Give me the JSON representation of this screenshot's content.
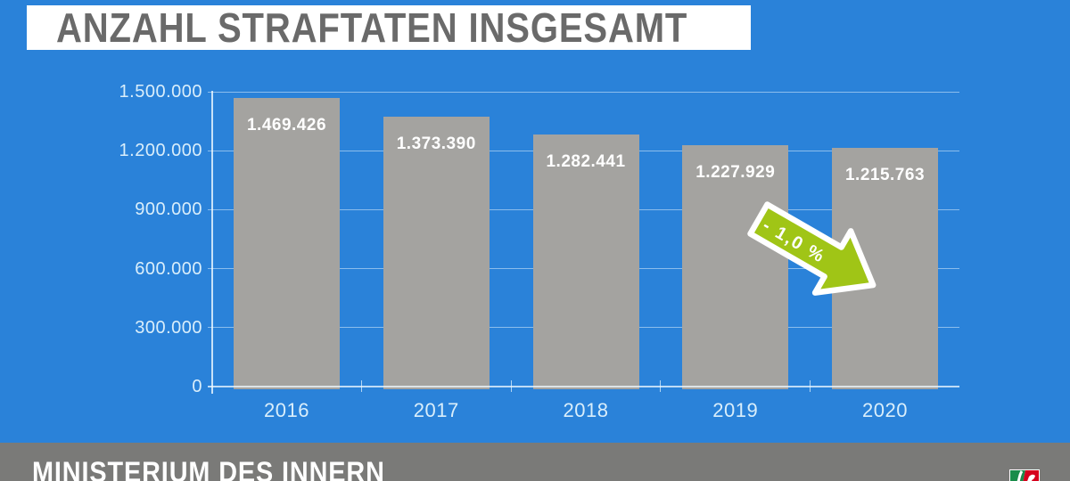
{
  "chart_data": {
    "type": "bar",
    "title": "ANZAHL STRAFTATEN INSGESAMT",
    "categories": [
      "2016",
      "2017",
      "2018",
      "2019",
      "2020"
    ],
    "values": [
      1469426,
      1373390,
      1282441,
      1227929,
      1215763
    ],
    "value_labels": [
      "1.469.426",
      "1.373.390",
      "1.282.441",
      "1.227.929",
      "1.215.763"
    ],
    "xlabel": "",
    "ylabel": "",
    "ylim": [
      0,
      1500000
    ],
    "yticks": [
      {
        "value": 1500000,
        "label": "1.500.000"
      },
      {
        "value": 1200000,
        "label": "1.200.000"
      },
      {
        "value": 900000,
        "label": "900.000"
      },
      {
        "value": 600000,
        "label": "600.000"
      },
      {
        "value": 300000,
        "label": "300.000"
      },
      {
        "value": 0,
        "label": "0"
      }
    ],
    "grid": true,
    "legend": false,
    "annotation": {
      "label": "- 1,0 %",
      "style": "green-arrow-pointing-down-right-between-2019-and-2020"
    }
  },
  "footer": {
    "text": "MINISTERIUM DES INNERN",
    "logo": "nrw-coat-of-arms"
  },
  "colors": {
    "background": "#2a82d9",
    "bar": "#a4a3a0",
    "banner_background": "#ffffff",
    "title_text": "#6a6a6a",
    "grid_line": "#9ccaee",
    "axis_line": "#eef7fd",
    "tick_label": "#d9eefb",
    "value_label": "#ffffff",
    "arrow_fill": "#a0c516",
    "arrow_outline": "#ffffff",
    "footer_background": "#7a7a78",
    "footer_text": "#ffffff",
    "logo_green": "#1a8c4a",
    "logo_red": "#d5001d"
  }
}
